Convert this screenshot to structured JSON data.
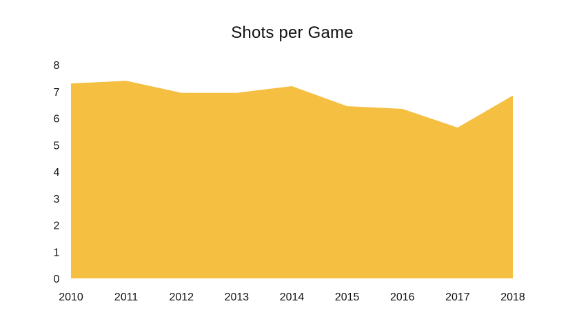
{
  "chart_data": {
    "type": "area",
    "title": "Shots per Game",
    "xlabel": "",
    "ylabel": "",
    "x": [
      "2010",
      "2011",
      "2012",
      "2013",
      "2014",
      "2015",
      "2016",
      "2017",
      "2018"
    ],
    "series": [
      {
        "values": [
          7.3,
          7.4,
          6.95,
          6.95,
          7.2,
          6.45,
          6.35,
          5.65,
          6.85
        ],
        "color": "#F5BF42"
      }
    ],
    "ylim": [
      0,
      8
    ],
    "yticks": [
      "0",
      "1",
      "2",
      "3",
      "4",
      "5",
      "6",
      "7",
      "8"
    ],
    "grid": false,
    "legend": "none"
  }
}
